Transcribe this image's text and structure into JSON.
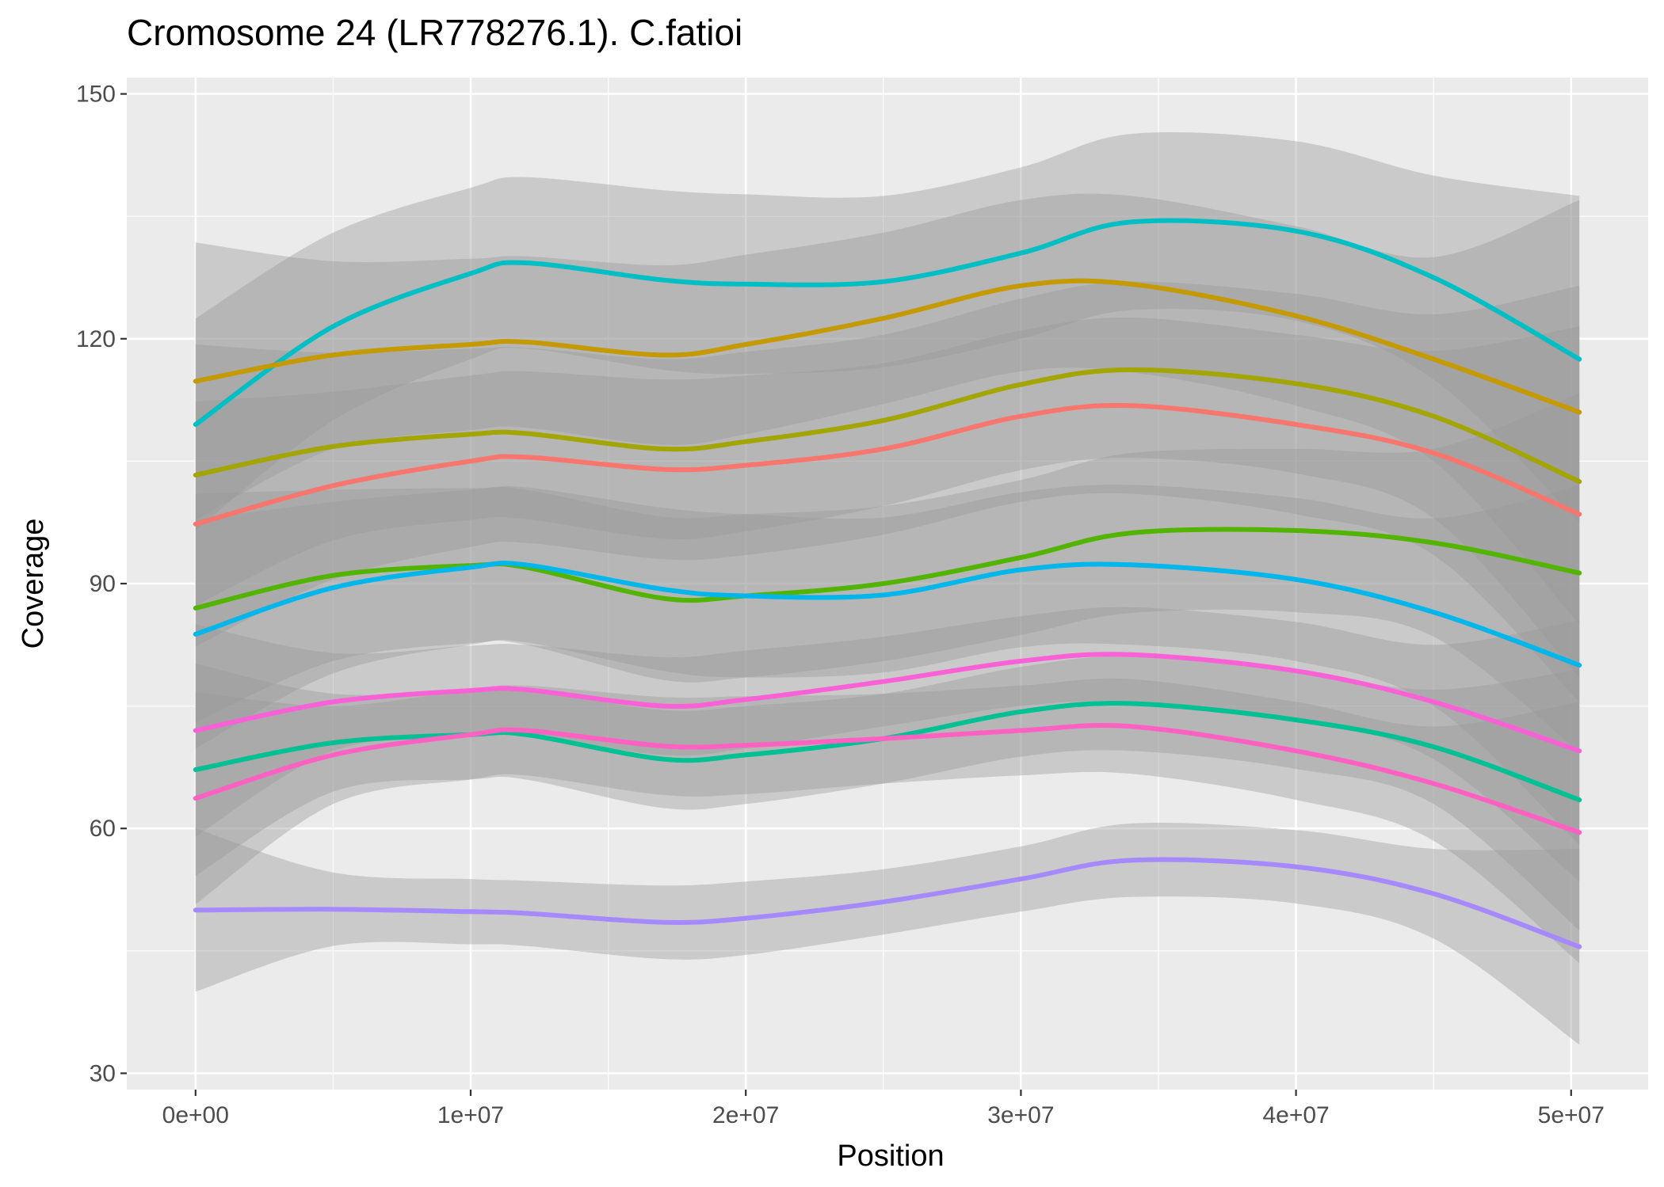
{
  "chart_data": {
    "type": "line",
    "title": "Cromosome 24 (LR778276.1). C.fatioi",
    "xlabel": "Position",
    "ylabel": "Coverage",
    "xlim": [
      -2500000,
      52800000
    ],
    "ylim": [
      28000,
      152000
    ],
    "ylim_note": "",
    "x_ticks": [
      0,
      10000000,
      20000000,
      30000000,
      40000000,
      50000000
    ],
    "x_tick_labels": [
      "0e+00",
      "1e+07",
      "2e+07",
      "3e+07",
      "4e+07",
      "5e+07"
    ],
    "y_ticks": [
      30,
      60,
      90,
      120,
      150
    ],
    "y_tick_labels": [
      "30",
      "60",
      "90",
      "120",
      "150"
    ],
    "y_range": [
      28,
      152
    ],
    "grid": true,
    "legend": "none",
    "x": [
      0,
      5000000,
      10000000,
      12000000,
      17000000,
      20000000,
      25000000,
      30000000,
      34000000,
      40000000,
      45000000,
      50300000
    ],
    "series": [
      {
        "color": "#00BFC4",
        "values": [
          109.5,
          121.5,
          128.0,
          129.3,
          127.2,
          126.7,
          127.0,
          130.5,
          134.3,
          133.2,
          127.5,
          117.5
        ],
        "band": [
          13.0,
          11.5,
          10.5,
          10.5,
          11.0,
          11.0,
          10.5,
          10.5,
          10.8,
          11.0,
          12.5,
          20.0
        ]
      },
      {
        "color": "#C49A00",
        "values": [
          114.8,
          118.0,
          119.3,
          119.6,
          118.0,
          119.3,
          122.5,
          126.5,
          126.7,
          122.8,
          117.5,
          111.0
        ],
        "band": [
          17.0,
          11.5,
          10.5,
          10.5,
          11.0,
          11.0,
          10.5,
          10.5,
          10.8,
          11.0,
          12.5,
          26.0
        ]
      },
      {
        "color": "#A3A500",
        "values": [
          103.3,
          106.8,
          108.3,
          108.4,
          106.5,
          107.4,
          110.0,
          114.4,
          116.2,
          114.5,
          110.5,
          102.5
        ],
        "band": [
          16.0,
          11.5,
          10.5,
          10.5,
          11.0,
          11.0,
          10.5,
          10.5,
          10.8,
          11.0,
          12.5,
          24.0
        ]
      },
      {
        "color": "#F8766D",
        "values": [
          97.3,
          102.0,
          105.0,
          105.5,
          104.0,
          104.5,
          106.5,
          110.5,
          111.8,
          109.5,
          106.0,
          98.5
        ],
        "band": [
          15.0,
          11.5,
          10.5,
          10.5,
          11.0,
          11.0,
          10.5,
          10.5,
          10.8,
          11.0,
          12.5,
          23.0
        ]
      },
      {
        "color": "#53B400",
        "values": [
          87.0,
          91.0,
          92.2,
          92.0,
          88.2,
          88.5,
          90.0,
          93.2,
          96.2,
          96.5,
          95.0,
          91.3
        ],
        "band": [
          14.0,
          10.5,
          9.5,
          9.5,
          10.0,
          10.0,
          9.5,
          9.5,
          9.8,
          10.0,
          11.5,
          22.0
        ]
      },
      {
        "color": "#00B6EB",
        "values": [
          83.8,
          89.5,
          92.0,
          92.3,
          89.3,
          88.5,
          88.6,
          91.7,
          92.3,
          90.5,
          86.5,
          80.0
        ],
        "band": [
          14.0,
          10.5,
          9.5,
          9.5,
          10.0,
          10.0,
          9.5,
          9.5,
          9.8,
          10.0,
          11.5,
          22.0
        ]
      },
      {
        "color": "#FB61D7",
        "values": [
          72.0,
          75.5,
          76.9,
          77.0,
          75.0,
          75.8,
          78.0,
          80.5,
          81.3,
          79.3,
          75.5,
          69.5
        ],
        "band": [
          13.0,
          6.0,
          5.5,
          5.5,
          6.0,
          6.0,
          5.5,
          5.5,
          5.8,
          6.0,
          7.0,
          16.0
        ]
      },
      {
        "color": "#00C094",
        "values": [
          67.2,
          70.5,
          71.5,
          71.5,
          68.5,
          69.0,
          71.0,
          74.3,
          75.3,
          73.3,
          70.0,
          63.5
        ],
        "band": [
          13.0,
          6.0,
          5.5,
          5.5,
          6.0,
          6.0,
          5.5,
          5.5,
          5.8,
          6.0,
          7.0,
          16.0
        ]
      },
      {
        "color": "#FF61C3",
        "values": [
          63.7,
          69.0,
          71.5,
          72.0,
          70.1,
          70.2,
          71.0,
          72.0,
          72.5,
          69.5,
          65.5,
          59.5
        ],
        "band": [
          13.0,
          6.0,
          5.5,
          5.5,
          6.0,
          6.0,
          5.5,
          5.5,
          5.8,
          6.0,
          7.0,
          16.0
        ]
      },
      {
        "color": "#A58AFF",
        "values": [
          50.0,
          50.1,
          49.8,
          49.6,
          48.5,
          49.0,
          51.0,
          53.8,
          56.1,
          55.3,
          52.0,
          45.5
        ],
        "band": [
          10.0,
          4.5,
          4.0,
          4.0,
          4.5,
          4.5,
          4.0,
          4.0,
          4.5,
          4.5,
          5.5,
          12.0
        ]
      }
    ]
  }
}
